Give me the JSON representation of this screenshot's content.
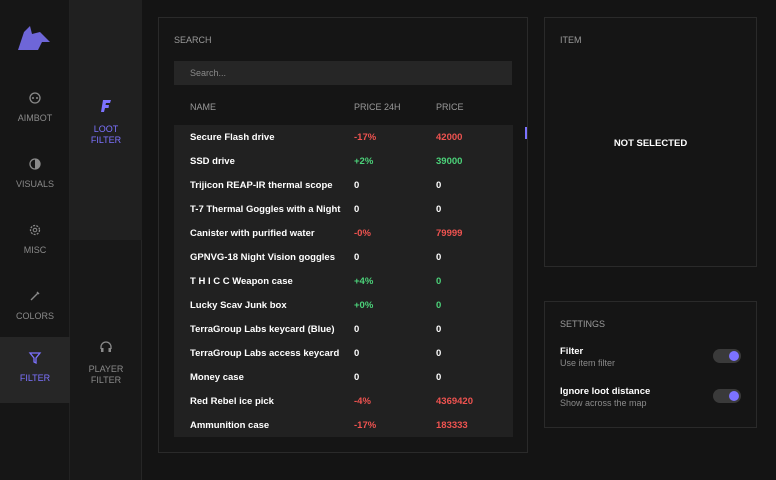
{
  "nav": [
    {
      "label": "AIMBOT"
    },
    {
      "label": "VISUALS"
    },
    {
      "label": "MISC"
    },
    {
      "label": "COLORS"
    },
    {
      "label": "FILTER"
    }
  ],
  "subnav": [
    {
      "label": "LOOT FILTER"
    },
    {
      "label": "PLAYER FILTER"
    }
  ],
  "search": {
    "title": "SEARCH",
    "placeholder": "Search...",
    "columns": [
      "NAME",
      "PRICE 24H",
      "PRICE"
    ],
    "rows": [
      [
        "Secure Flash drive",
        "-17%",
        42000
      ],
      [
        "SSD drive",
        "+2%",
        39000
      ],
      [
        "Trijicon REAP-IR thermal scope",
        "0",
        0
      ],
      [
        "T-7 Thermal Goggles with a Night",
        "0",
        0
      ],
      [
        "Canister with purified water",
        "-0%",
        79999
      ],
      [
        "GPNVG-18 Night Vision goggles",
        "0",
        0
      ],
      [
        "T H I C C Weapon case",
        "+4%",
        0
      ],
      [
        "Lucky Scav Junk box",
        "+0%",
        0
      ],
      [
        "TerraGroup Labs keycard (Blue)",
        "0",
        0
      ],
      [
        "TerraGroup Labs access keycard",
        "0",
        0
      ],
      [
        "Money case",
        "0",
        0
      ],
      [
        "Red Rebel ice pick",
        "-4%",
        4369420
      ],
      [
        "Ammunition case",
        "-17%",
        183333
      ]
    ]
  },
  "item": {
    "title": "ITEM",
    "status": "NOT SELECTED"
  },
  "settings": {
    "title": "SETTINGS",
    "options": [
      {
        "label": "Filter",
        "description": "Use item filter"
      },
      {
        "label": "Ignore loot distance",
        "description": "Show across the map"
      }
    ]
  }
}
